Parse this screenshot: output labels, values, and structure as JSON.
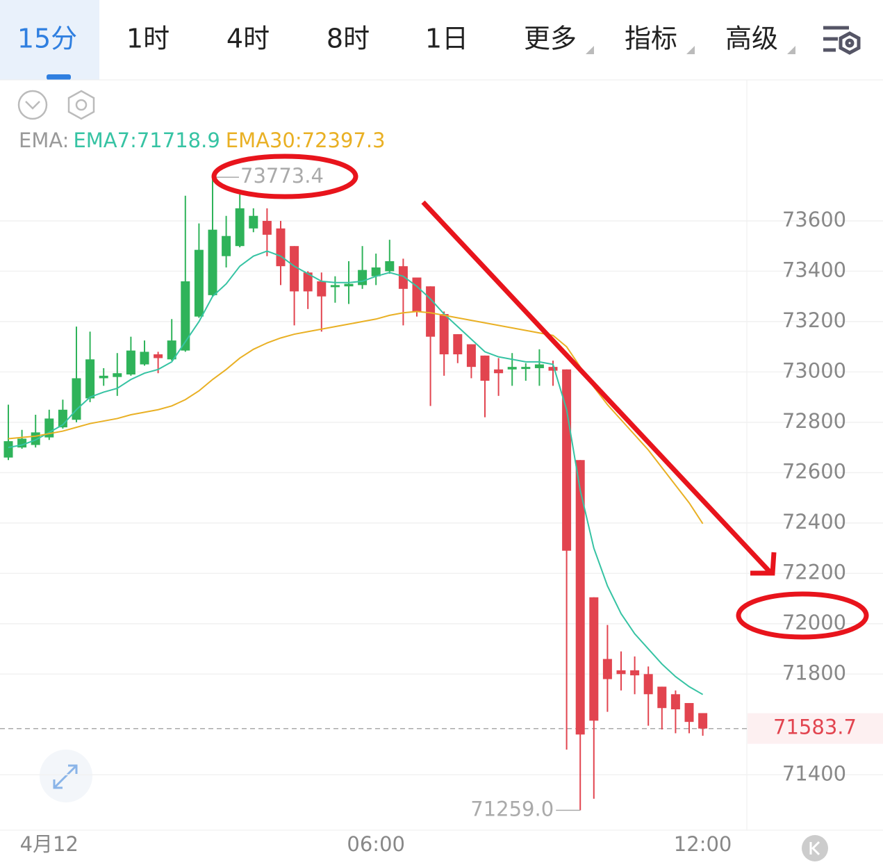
{
  "tabs": [
    "15分",
    "1时",
    "4时",
    "8时",
    "1日",
    "更多",
    "指标",
    "高级"
  ],
  "chart_data": {
    "type": "candlestick",
    "indicator_label": "EMA:",
    "categories": [
      null,
      null,
      null,
      "4月12",
      null,
      null,
      null,
      null,
      null,
      null,
      null,
      null,
      null,
      null,
      null,
      null,
      null,
      null,
      null,
      null,
      null,
      null,
      null,
      null,
      null,
      null,
      null,
      "06:00",
      null,
      null,
      null,
      null,
      null,
      null,
      null,
      null,
      null,
      null,
      null,
      null,
      null,
      null,
      null,
      null,
      null,
      null,
      null,
      null,
      null,
      null,
      null,
      "12:00"
    ],
    "open": [
      72660,
      72700,
      72710,
      72740,
      72780,
      72810,
      72895,
      72975,
      72980,
      72990,
      73030,
      73070,
      73050,
      73085,
      73220,
      73305,
      73460,
      73500,
      73570,
      73600,
      73570,
      73500,
      73395,
      73360,
      73340,
      73340,
      73345,
      73380,
      73400,
      73420,
      73375,
      73340,
      73230,
      73150,
      73110,
      73065,
      73010,
      73010,
      73015,
      73015,
      73020,
      73010,
      72650,
      72105,
      71860,
      71815,
      71815,
      71800,
      71750,
      71720,
      71685,
      71645
    ],
    "high": [
      72870,
      72770,
      72830,
      72850,
      72890,
      73180,
      73160,
      73015,
      73075,
      73140,
      73125,
      73080,
      73210,
      73700,
      73590,
      73773.4,
      73620,
      73705,
      73650,
      73650,
      73600,
      73500,
      73400,
      73395,
      73380,
      73440,
      73500,
      73470,
      73525,
      73450,
      73375,
      73340,
      73240,
      73150,
      73110,
      73065,
      73055,
      73075,
      73035,
      73090,
      73045,
      73010,
      72650,
      72105,
      71995,
      71890,
      71870,
      71830,
      71750,
      71735,
      71685,
      71645
    ],
    "low": [
      72650,
      72695,
      72700,
      72730,
      72775,
      72800,
      72880,
      72945,
      72905,
      72985,
      73025,
      72995,
      73045,
      73080,
      73215,
      73300,
      73415,
      73495,
      73555,
      73460,
      73345,
      73185,
      73250,
      73160,
      73275,
      73270,
      73330,
      73345,
      73390,
      73185,
      73220,
      72865,
      72985,
      73035,
      72975,
      72820,
      72905,
      72945,
      72965,
      72945,
      72945,
      71500,
      71259,
      71305,
      71650,
      71735,
      71720,
      71595,
      71580,
      71565,
      71565,
      71555
    ],
    "close": [
      72725,
      72735,
      72760,
      72815,
      72850,
      72975,
      73050,
      72985,
      72995,
      73085,
      73080,
      73055,
      73125,
      73360,
      73485,
      73565,
      73540,
      73650,
      73620,
      73545,
      73420,
      73320,
      73320,
      73300,
      73345,
      73350,
      73405,
      73415,
      73440,
      73330,
      73240,
      73140,
      73070,
      73070,
      73020,
      72965,
      72995,
      73020,
      73020,
      73030,
      73005,
      72290,
      71560,
      71615,
      71780,
      71800,
      71795,
      71720,
      71665,
      71660,
      71610,
      71583.7
    ],
    "up_color": "#2fb35a",
    "down_color": "#e2444f",
    "series": [
      {
        "name": "EMA7:71718.9",
        "color": "#36c3a3",
        "values": [
          72700,
          72710,
          72730,
          72760,
          72790,
          72850,
          72900,
          72920,
          72935,
          72970,
          72995,
          73010,
          73040,
          73120,
          73200,
          73300,
          73350,
          73420,
          73460,
          73480,
          73460,
          73420,
          73390,
          73360,
          73355,
          73355,
          73360,
          73380,
          73395,
          73380,
          73340,
          73290,
          73230,
          73180,
          73130,
          73080,
          73060,
          73050,
          73040,
          73040,
          73030,
          72850,
          72530,
          72300,
          72150,
          72040,
          71960,
          71900,
          71840,
          71790,
          71750,
          71718.9
        ]
      },
      {
        "name": "EMA30:72397.3",
        "color": "#e9b024",
        "values": [
          72735,
          72740,
          72745,
          72755,
          72765,
          72780,
          72795,
          72805,
          72815,
          72830,
          72840,
          72850,
          72865,
          72890,
          72925,
          72970,
          73010,
          73055,
          73090,
          73115,
          73135,
          73150,
          73160,
          73170,
          73180,
          73190,
          73200,
          73210,
          73225,
          73235,
          73240,
          73235,
          73225,
          73215,
          73205,
          73195,
          73185,
          73175,
          73165,
          73155,
          73145,
          73100,
          73020,
          72940,
          72870,
          72810,
          72750,
          72690,
          72620,
          72550,
          72480,
          72397.3
        ]
      }
    ],
    "high_label": 73773.4,
    "low_label": {
      "value": 71259,
      "label": "71259.0"
    },
    "last_price": 71583.7,
    "ylim": [
      71180,
      74160
    ],
    "yticks": [
      71400,
      71800,
      72000,
      72200,
      72400,
      72600,
      72800,
      73000,
      73200,
      73400,
      73600
    ],
    "grid": true
  }
}
